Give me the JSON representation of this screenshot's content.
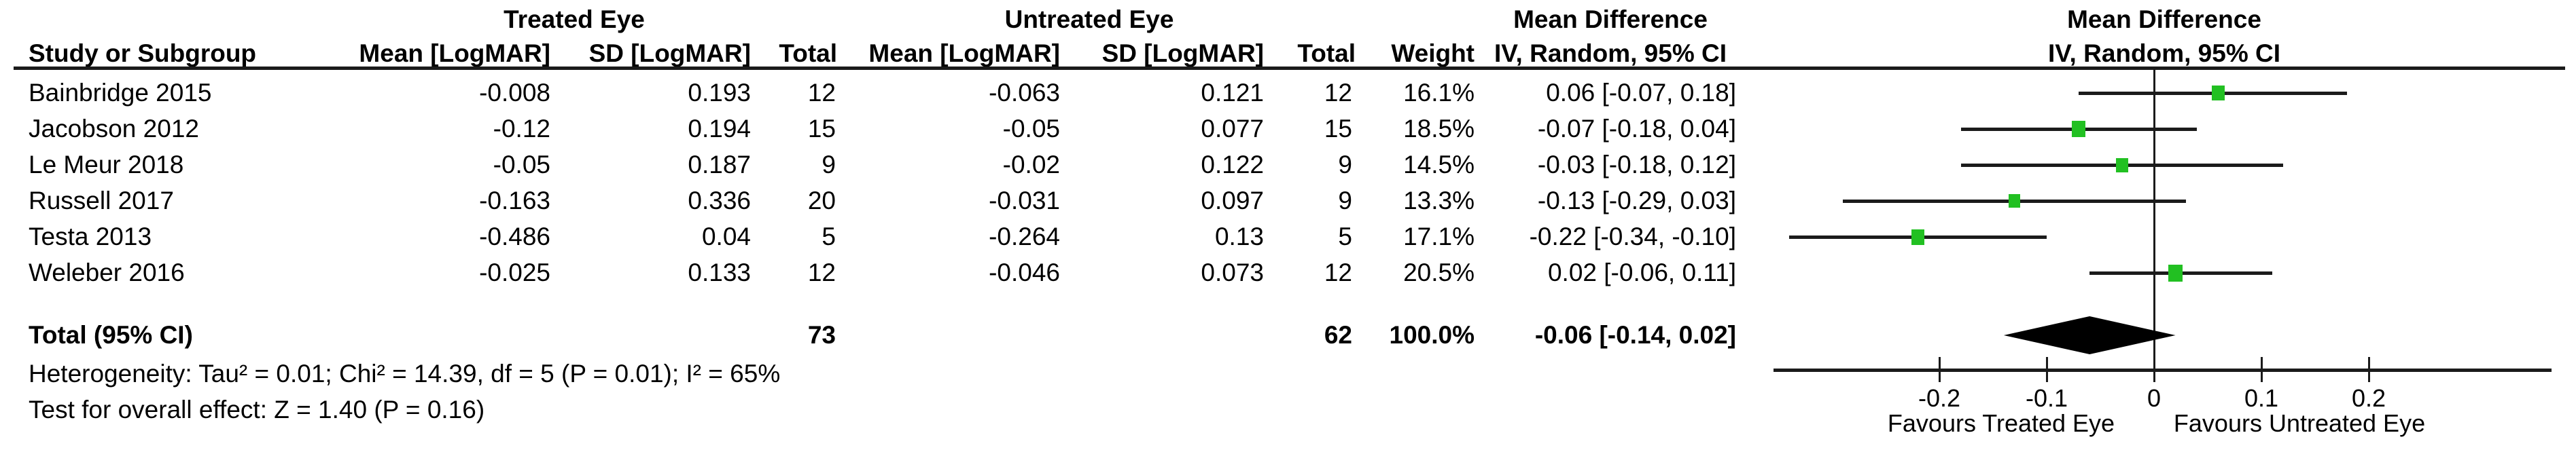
{
  "figure": {
    "groups": {
      "treated": "Treated Eye",
      "untreated": "Untreated Eye",
      "md_text": "Mean Difference",
      "md_plot": "Mean Difference"
    },
    "columns": {
      "study": "Study or Subgroup",
      "mean_treated": "Mean [LogMAR]",
      "sd_treated": "SD [LogMAR]",
      "total_treated": "Total",
      "mean_untreated": "Mean [LogMAR]",
      "sd_untreated": "SD [LogMAR]",
      "total_untreated": "Total",
      "weight": "Weight",
      "iv_text": "IV, Random, 95% CI",
      "iv_plot": "IV, Random, 95% CI"
    },
    "footer": {
      "heterogeneity": "Heterogeneity: Tau² = 0.01; Chi² = 14.39, df = 5 (P = 0.01); I² = 65%",
      "overall_effect": "Test for overall effect: Z = 1.40 (P = 0.16)"
    }
  },
  "chart_data": {
    "type": "forest",
    "effect_label": "Mean Difference",
    "model": "IV, Random, 95% CI",
    "units": "LogMAR",
    "colors": {
      "marker_green": "#22c022",
      "line_black": "#1b1b1b",
      "diamond_black": "#000000"
    },
    "studies": [
      {
        "name": "Bainbridge 2015",
        "cells": [
          "-0.008",
          "0.193",
          "12",
          "-0.063",
          "0.121",
          "12",
          "16.1%",
          "0.06 [-0.07, 0.18]"
        ],
        "md": 0.06,
        "lo": -0.07,
        "hi": 0.18,
        "weight": 16.1
      },
      {
        "name": "Jacobson 2012",
        "cells": [
          "-0.12",
          "0.194",
          "15",
          "-0.05",
          "0.077",
          "15",
          "18.5%",
          "-0.07 [-0.18, 0.04]"
        ],
        "md": -0.07,
        "lo": -0.18,
        "hi": 0.04,
        "weight": 18.5
      },
      {
        "name": "Le Meur 2018",
        "cells": [
          "-0.05",
          "0.187",
          "9",
          "-0.02",
          "0.122",
          "9",
          "14.5%",
          "-0.03 [-0.18, 0.12]"
        ],
        "md": -0.03,
        "lo": -0.18,
        "hi": 0.12,
        "weight": 14.5
      },
      {
        "name": "Russell 2017",
        "cells": [
          "-0.163",
          "0.336",
          "20",
          "-0.031",
          "0.097",
          "9",
          "13.3%",
          "-0.13 [-0.29, 0.03]"
        ],
        "md": -0.13,
        "lo": -0.29,
        "hi": 0.03,
        "weight": 13.3
      },
      {
        "name": "Testa 2013",
        "cells": [
          "-0.486",
          "0.04",
          "5",
          "-0.264",
          "0.13",
          "5",
          "17.1%",
          "-0.22 [-0.34, -0.10]"
        ],
        "md": -0.22,
        "lo": -0.34,
        "hi": -0.1,
        "weight": 17.1
      },
      {
        "name": "Weleber 2016",
        "cells": [
          "-0.025",
          "0.133",
          "12",
          "-0.046",
          "0.073",
          "12",
          "20.5%",
          "0.02 [-0.06, 0.11]"
        ],
        "md": 0.02,
        "lo": -0.06,
        "hi": 0.11,
        "weight": 20.5
      }
    ],
    "total": {
      "label": "Total (95% CI)",
      "treated_total": "73",
      "untreated_total": "62",
      "weight": "100.0%",
      "ci_label": "-0.06 [-0.14, 0.02]",
      "md": -0.06,
      "lo": -0.14,
      "hi": 0.02
    },
    "axis": {
      "xmin": -0.355,
      "xmax": 0.37,
      "ticks": [
        {
          "v": -0.2,
          "label": "-0.2"
        },
        {
          "v": -0.1,
          "label": "-0.1"
        },
        {
          "v": 0,
          "label": "0"
        },
        {
          "v": 0.1,
          "label": "0.1"
        },
        {
          "v": 0.2,
          "label": "0.2"
        }
      ],
      "favours_left": "Favours Treated Eye",
      "favours_right": "Favours Untreated Eye"
    }
  }
}
